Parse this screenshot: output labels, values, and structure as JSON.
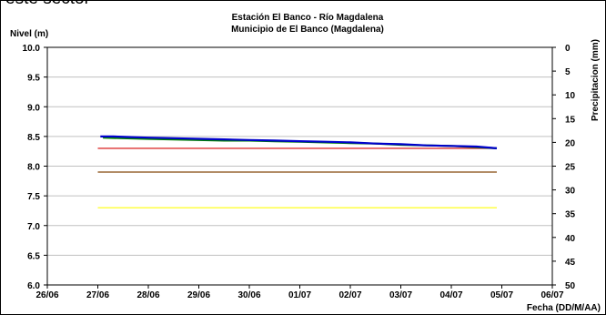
{
  "top_text": "este sector",
  "chart_data": {
    "type": "line",
    "title": "Estación El Banco - Río Magdalena",
    "subtitle": "Municipio de El Banco (Magdalena)",
    "ylabel": "Nivel (m)",
    "y2label": "Precipitacion (mm)",
    "xlabel": "Fecha (DD/M/AA)",
    "ylim": [
      6.0,
      10.0
    ],
    "y_ticks": [
      "6.0",
      "6.5",
      "7.0",
      "7.5",
      "8.0",
      "8.5",
      "9.0",
      "9.5",
      "10.0"
    ],
    "y2lim": [
      0,
      50
    ],
    "y2_reversed": true,
    "y2_ticks": [
      "0",
      "5",
      "10",
      "15",
      "20",
      "25",
      "30",
      "35",
      "40",
      "45",
      "50"
    ],
    "x_ticks": [
      "26/06",
      "27/06",
      "28/06",
      "29/06",
      "30/06",
      "01/07",
      "02/07",
      "03/07",
      "04/07",
      "05/07",
      "06/07"
    ],
    "xlim_days": [
      0,
      10
    ],
    "grid": "horizontal",
    "series": [
      {
        "color": "#0000cc",
        "x": [
          1.05,
          1.3,
          1.6,
          2.0,
          2.5,
          3.0,
          3.5,
          4.0,
          4.5,
          5.0,
          5.5,
          6.0,
          6.5,
          7.0,
          7.5,
          8.0,
          8.5,
          8.9
        ],
        "y": [
          8.5,
          8.5,
          8.49,
          8.48,
          8.47,
          8.46,
          8.45,
          8.44,
          8.43,
          8.42,
          8.41,
          8.4,
          8.38,
          8.37,
          8.35,
          8.34,
          8.33,
          8.3
        ]
      },
      {
        "color": "#008000",
        "x": [
          1.1,
          1.5,
          2.0,
          2.5,
          3.0,
          3.5,
          4.0,
          4.5,
          5.0,
          5.5,
          6.0,
          6.5,
          7.0,
          7.5,
          8.0,
          8.5,
          8.9
        ],
        "y": [
          8.48,
          8.47,
          8.46,
          8.45,
          8.44,
          8.43,
          8.43,
          8.42,
          8.41,
          8.4,
          8.39,
          8.38,
          8.36,
          8.35,
          8.34,
          8.32,
          8.3
        ]
      },
      {
        "color": "#dd3333",
        "x": [
          1.0,
          8.9
        ],
        "y": [
          8.3,
          8.3
        ]
      },
      {
        "color": "#996633",
        "x": [
          1.0,
          8.9
        ],
        "y": [
          7.9,
          7.9
        ]
      },
      {
        "color": "#ffff33",
        "x": [
          1.0,
          8.9
        ],
        "y": [
          7.3,
          7.3
        ]
      }
    ]
  }
}
